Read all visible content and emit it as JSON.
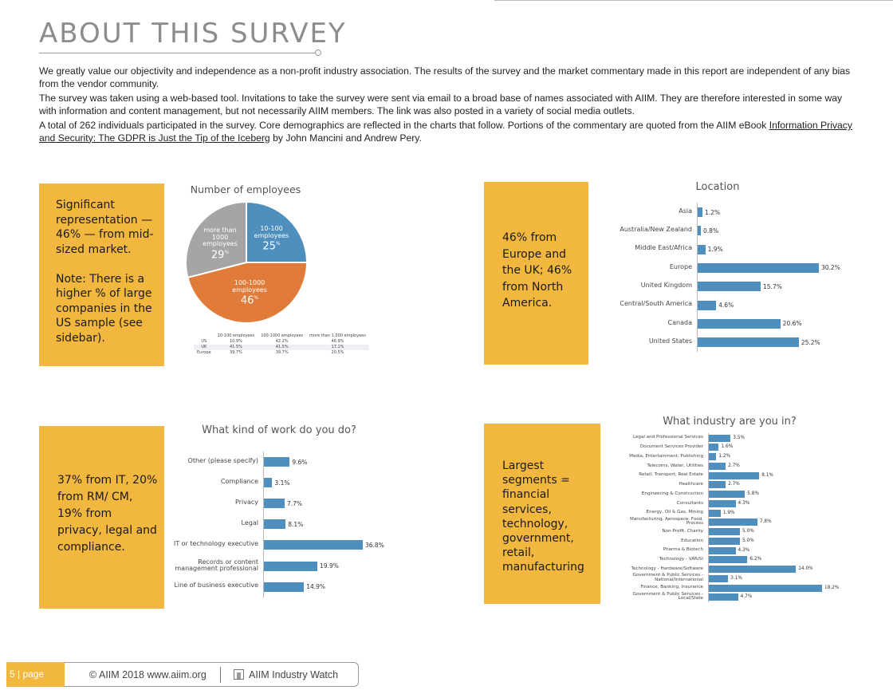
{
  "page": {
    "title": "ABOUT THIS SURVEY",
    "intro": {
      "p1": "We greatly value our objectivity and independence as a non-profit industry association. The results of the survey and the market commentary made in this report are independent of any bias from the vendor community.",
      "p2": "The survey was taken using a web-based tool. Invitations to take the survey were sent via email to a broad base of names associated with AIIM. They are therefore interested in some way with information and content management, but not necessarily AIIM members. The link was also posted in a variety of social media outlets.",
      "p3_start": "A total of 262 individuals participated in the survey. Core demographics are reflected in the charts that follow. Portions of the commentary are quoted from the AIIM eBook ",
      "p3_link": "Information Privacy and Security: The GDPR is Just the Tip of the Iceberg",
      "p3_end": " by John Mancini and Andrew Pery."
    }
  },
  "callouts": {
    "employees": "Significant representation — 46% — from mid-sized market.\n\nNote: There is a higher % of large companies in the US sample (see sidebar).",
    "location": "46% from Europe and the UK; 46% from North America.",
    "work": "37% from IT, 20% from RM/ CM, 19% from privacy, legal and compliance.",
    "industry": "Largest segments = financial services, technology, government, retail, manufacturing"
  },
  "chart_data": [
    {
      "type": "pie",
      "title": "Number of employees",
      "slices": [
        {
          "label": "10-100 employees",
          "value": 25,
          "color": "#4e8fbe"
        },
        {
          "label": "100-1000 employees",
          "value": 46,
          "color": "#e07b39"
        },
        {
          "label": "more than 1000 employees",
          "value": 29,
          "color": "#a5a5a5"
        }
      ],
      "table": {
        "headers": [
          "",
          "10-100 employees",
          "100-1000 employees",
          "more than 1,000 employees"
        ],
        "rows": [
          [
            "US",
            "10.9%",
            "42.2%",
            "46.9%"
          ],
          [
            "UK",
            "41.5%",
            "41.5%",
            "17.1%"
          ],
          [
            "Europe",
            "39.7%",
            "39.7%",
            "20.5%"
          ]
        ]
      }
    },
    {
      "type": "bar",
      "orientation": "horizontal",
      "title": "Location",
      "categories": [
        "Asia",
        "Australia/New Zealand",
        "Middle East/Africa",
        "Europe",
        "United Kingdom",
        "Central/South America",
        "Canada",
        "United States"
      ],
      "values": [
        1.2,
        0.8,
        1.9,
        30.2,
        15.7,
        4.6,
        20.6,
        25.2
      ],
      "labels": [
        "1.2%",
        "0.8%",
        "1.9%",
        "30.2%",
        "15.7%",
        "4.6%",
        "20.6%",
        "25.2%"
      ],
      "xlim": [
        0,
        30.2
      ]
    },
    {
      "type": "bar",
      "orientation": "horizontal",
      "title": "What kind of work do you do?",
      "categories": [
        "Other (please specify)",
        "Compliance",
        "Privacy",
        "Legal",
        "IT or technology executive",
        "Records or content management professional",
        "Line of business executive"
      ],
      "values": [
        9.6,
        3.1,
        7.7,
        8.1,
        36.8,
        19.9,
        14.9
      ],
      "labels": [
        "9.6%",
        "3.1%",
        "7.7%",
        "8.1%",
        "36.8%",
        "19.9%",
        "14.9%"
      ],
      "xlim": [
        0,
        36.8
      ]
    },
    {
      "type": "bar",
      "orientation": "horizontal",
      "title": "What industry are you in?",
      "categories": [
        "Legal and Professional Services",
        "Document Services Provider",
        "Media, Entertainment, Publishing",
        "Telecoms, Water, Utilities",
        "Retail, Transport, Real Estate",
        "Healthcare",
        "Engineering & Construction",
        "Consultants",
        "Energy, Oil & Gas, Mining",
        "Manufacturing, Aerospace, Food, Process",
        "Non-Profit, Charity",
        "Education",
        "Pharma & Biotech",
        "Technology - VAR/SI",
        "Technology - Hardware/Software",
        "Government & Public Services - National/International",
        "Finance, Banking, Insurance",
        "Government & Public Services - Local/State"
      ],
      "values": [
        3.5,
        1.6,
        1.2,
        2.7,
        8.1,
        2.7,
        5.8,
        4.3,
        1.9,
        7.8,
        5.0,
        5.0,
        4.3,
        6.2,
        14.0,
        3.1,
        18.2,
        4.7
      ],
      "labels": [
        "3.5%",
        "1.6%",
        "1.2%",
        "2.7%",
        "8.1%",
        "2.7%",
        "5.8%",
        "4.3%",
        "1.9%",
        "7.8%",
        "5.0%",
        "5.0%",
        "4.3%",
        "6.2%",
        "14.0%",
        "3.1%",
        "18.2%",
        "4.7%"
      ],
      "xlim": [
        0,
        18.2
      ]
    }
  ],
  "footer": {
    "page_label": "5 | page",
    "copyright": "© AIIM 2018 www.aiim.org",
    "brand": "AIIM Industry Watch"
  },
  "colors": {
    "accent": "#f2b73f",
    "bar": "#4e8fbe"
  }
}
